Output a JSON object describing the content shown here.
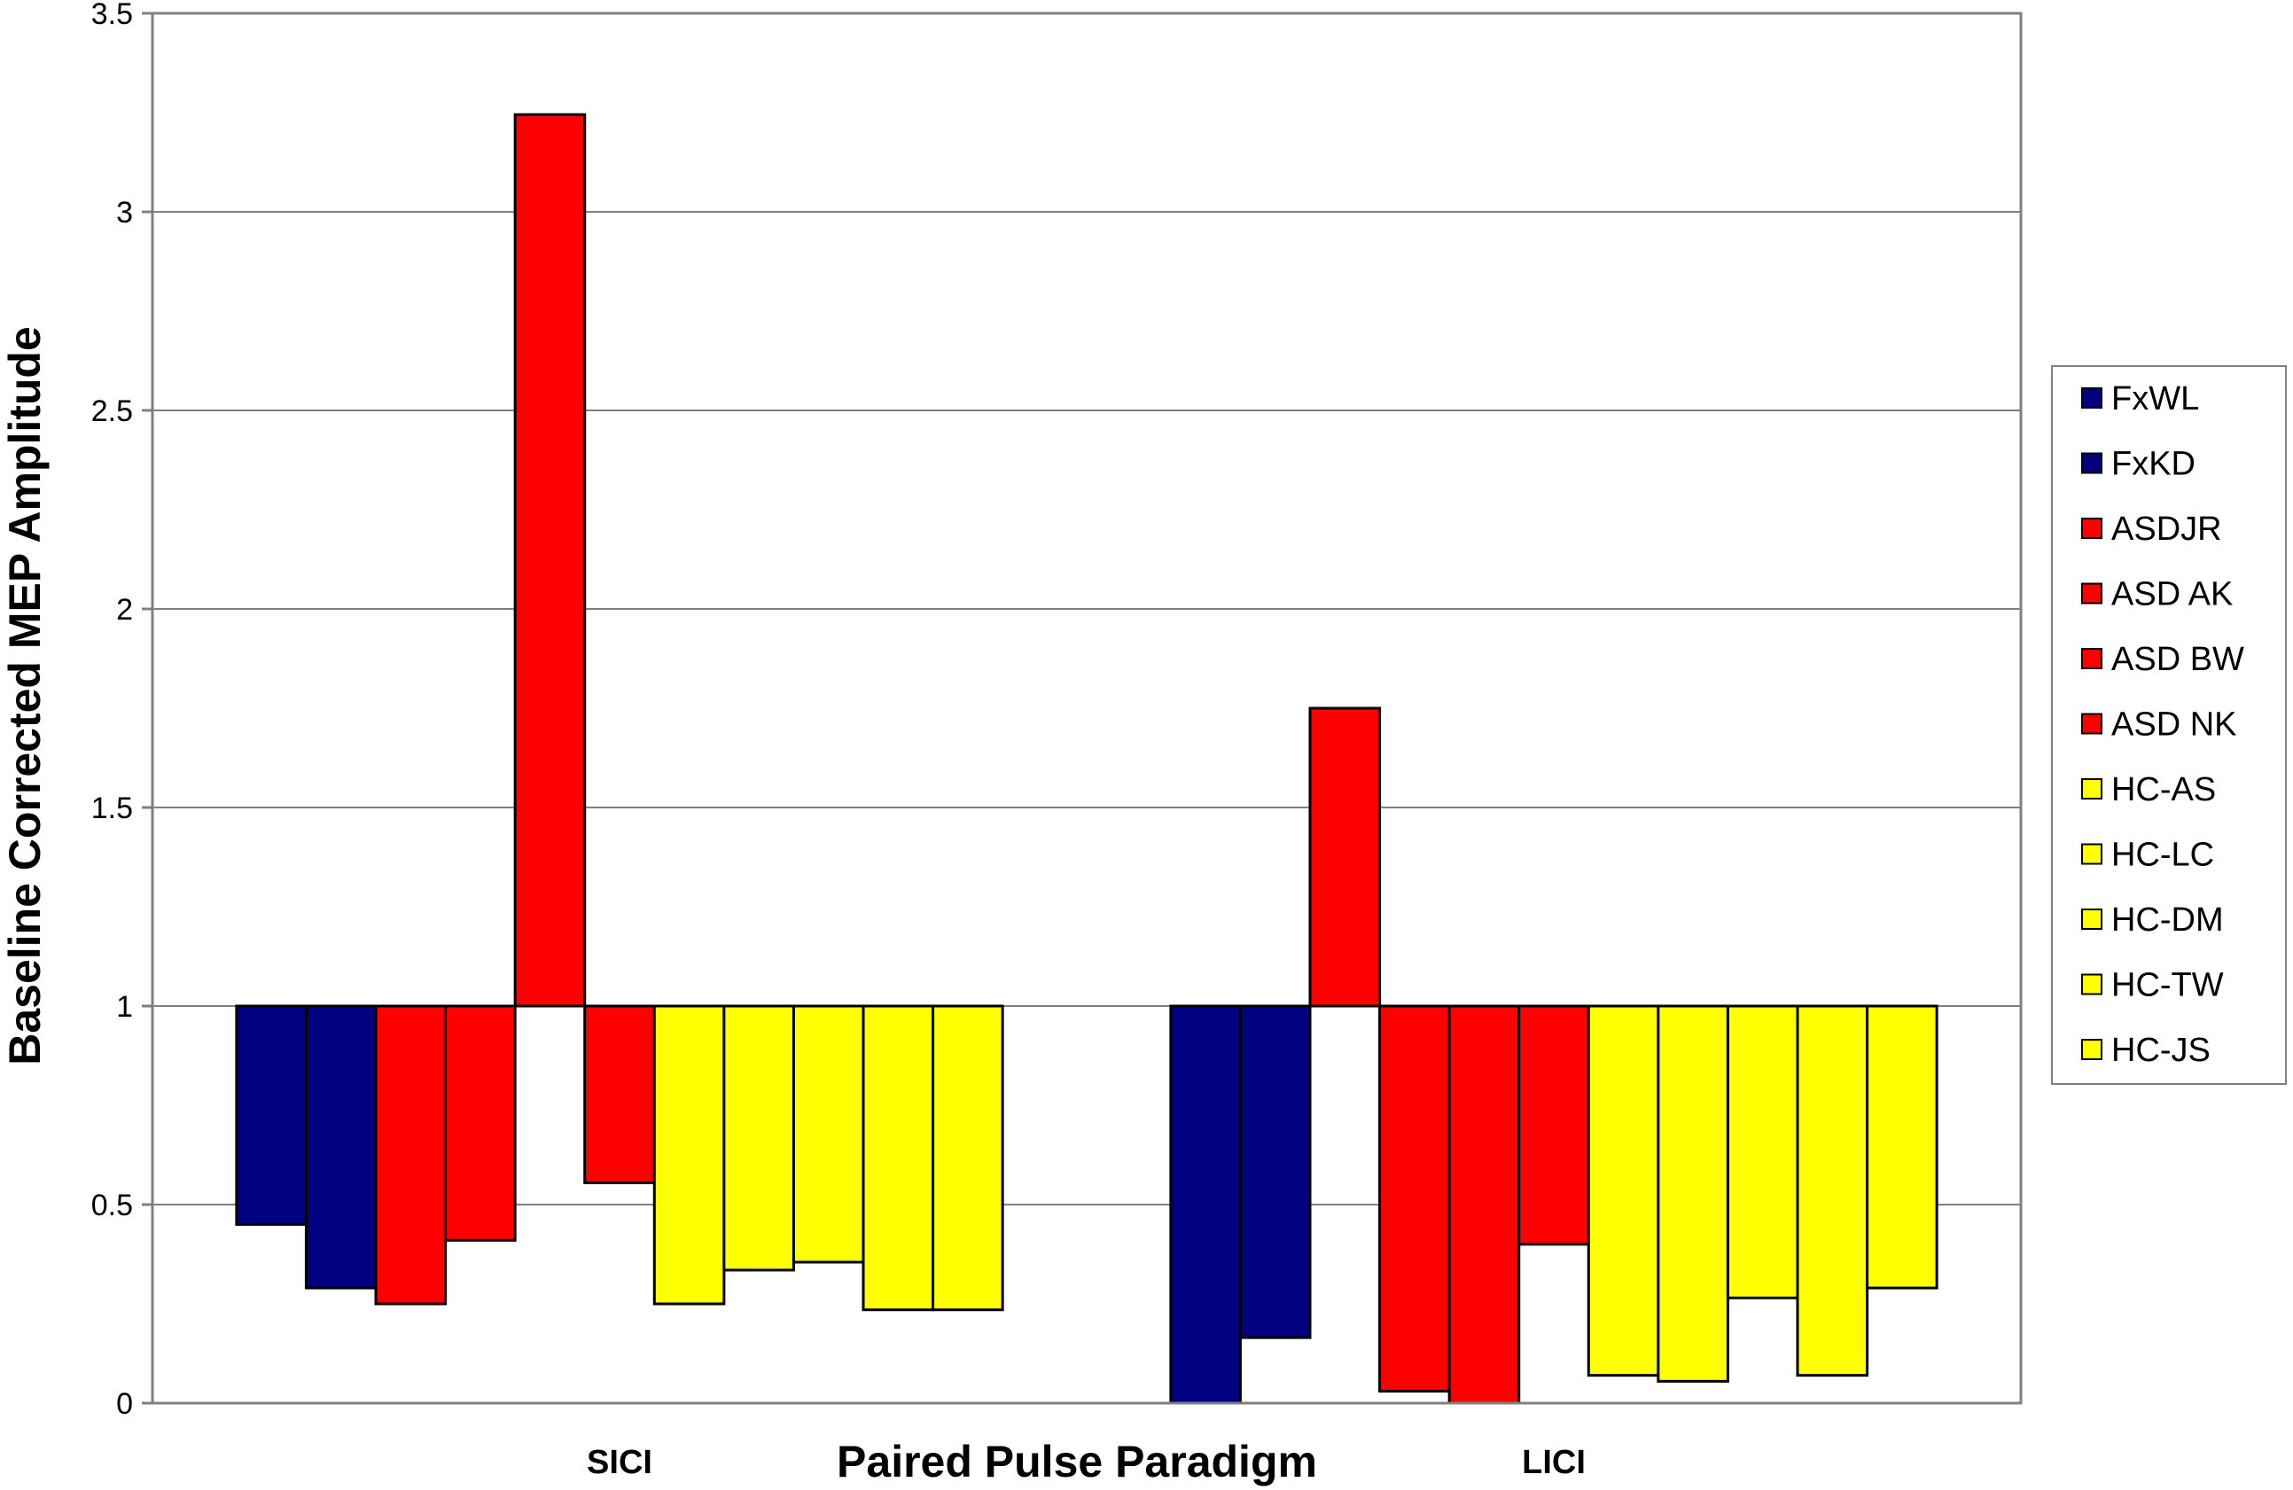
{
  "chart_data": {
    "type": "bar",
    "xlabel": "Paired Pulse Paradigm",
    "ylabel": "Baseline Corrected MEP Amplitude",
    "ylim": [
      0,
      3.5
    ],
    "yticks": [
      "0",
      "0.5",
      "1",
      "1.5",
      "2",
      "2.5",
      "3",
      "3.5"
    ],
    "baseline": 1,
    "grid": true,
    "legend_position": "right",
    "categories": [
      "SICI",
      "LICI"
    ],
    "series": [
      {
        "name": "FxWL",
        "color": "#000080",
        "values": [
          0.45,
          0.0
        ]
      },
      {
        "name": "FxKD",
        "color": "#000080",
        "values": [
          0.29,
          0.165
        ]
      },
      {
        "name": "ASDJR",
        "color": "#ff0000",
        "values": [
          0.25,
          1.75
        ]
      },
      {
        "name": "ASD AK",
        "color": "#ff0000",
        "values": [
          0.41,
          0.03
        ]
      },
      {
        "name": "ASD BW",
        "color": "#ff0000",
        "values": [
          3.245,
          0.0
        ]
      },
      {
        "name": "ASD NK",
        "color": "#ff0000",
        "values": [
          0.555,
          0.4
        ]
      },
      {
        "name": "HC-AS",
        "color": "#ffff00",
        "values": [
          0.25,
          0.07
        ]
      },
      {
        "name": "HC-LC",
        "color": "#ffff00",
        "values": [
          0.335,
          0.055
        ]
      },
      {
        "name": "HC-DM",
        "color": "#ffff00",
        "values": [
          0.355,
          0.265
        ]
      },
      {
        "name": "HC-TW",
        "color": "#ffff00",
        "values": [
          0.235,
          0.07
        ]
      },
      {
        "name": "HC-JS",
        "color": "#ffff00",
        "values": [
          0.235,
          0.29
        ]
      }
    ]
  }
}
